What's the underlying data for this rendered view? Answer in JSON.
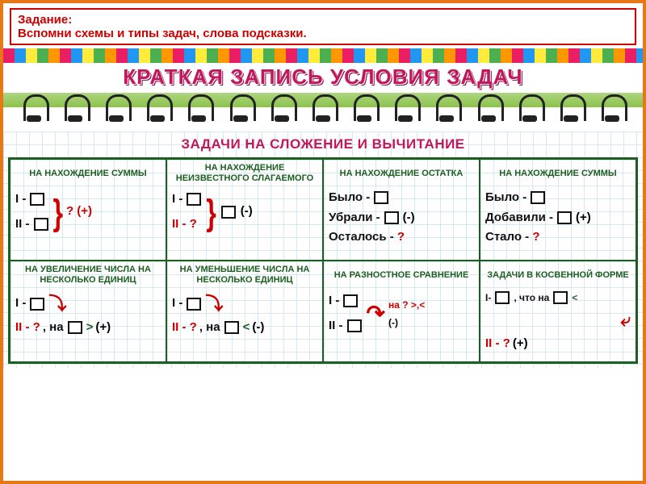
{
  "task": {
    "title": "Задание:",
    "text": "Вспомни схемы и типы задач, слова подсказки."
  },
  "main_title": "КРАТКАЯ ЗАПИСЬ УСЛОВИЯ ЗАДАЧ",
  "section_title": "ЗАДАЧИ НА СЛОЖЕНИЕ И ВЫЧИТАНИЕ",
  "cells": [
    {
      "title": "НА НАХОЖДЕНИЕ СУММЫ",
      "r1": "I -",
      "r2": "II -",
      "tail": "? (+)"
    },
    {
      "title": "НА НАХОЖДЕНИЕ НЕИЗВЕСТНОГО СЛАГАЕМОГО",
      "r1": "I -",
      "r2": "II - ?",
      "tail": "(-)"
    },
    {
      "title": "НА НАХОЖДЕНИЕ ОСТАТКА",
      "l1": "Было -",
      "l2": "Убрали -",
      "l2op": "(-)",
      "l3": "Осталось - ?"
    },
    {
      "title": "НА НАХОЖДЕНИЕ СУММЫ",
      "l1": "Было -",
      "l2": "Добавили -",
      "l2op": "(+)",
      "l3": "Стало - ?"
    },
    {
      "title": "НА УВЕЛИЧЕНИЕ ЧИСЛА НА НЕСКОЛЬКО ЕДИНИЦ",
      "r1": "I -",
      "r2": "II - ?, на",
      "r2b": ">",
      "tail": "(+)"
    },
    {
      "title": "НА УМЕНЬШЕНИЕ ЧИСЛА НА НЕСКОЛЬКО ЕДИНИЦ",
      "r1": "I -",
      "r2": "II - ?, на",
      "r2b": "<",
      "tail": "(-)"
    },
    {
      "title": "НА РАЗНОСТНОЕ СРАВНЕНИЕ",
      "r1": "I -",
      "r2": "II -",
      "tail": "на ? >,<",
      "tail2": "(-)"
    },
    {
      "title": "ЗАДАЧИ В КОСВЕННОЙ ФОРМЕ",
      "r1": "I-",
      "r1t": ", что на",
      "r1b": "<",
      "r2": "II - ?",
      "tail": "(+)"
    }
  ],
  "colors": {
    "border": "#e67817",
    "red": "#c00",
    "green": "#1b5e20",
    "magenta": "#c2185b"
  },
  "ring_count": 15
}
